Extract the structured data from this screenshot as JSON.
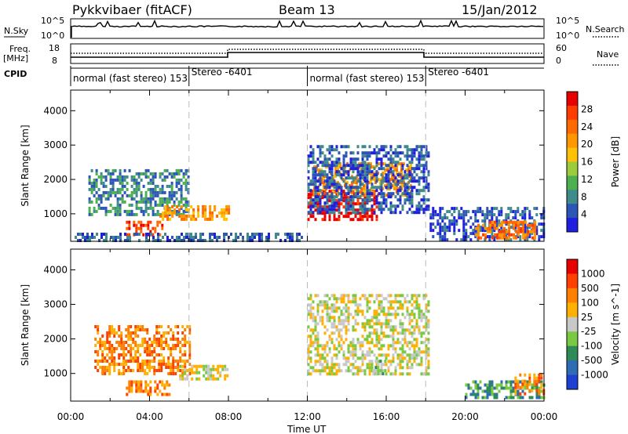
{
  "header": {
    "site": "Pykkvibaer (fitACF)",
    "beam": "Beam 13",
    "date": "15/Jan/2012"
  },
  "top_panels": {
    "nsky_label": "N.Sky",
    "nsky_ticks": [
      "10^5",
      "10^0"
    ],
    "nsearch_ticks": [
      "10^5",
      "10^0"
    ],
    "nsearch_label": "N.Search",
    "freq_label_1": "Freq.",
    "freq_label_2": "[MHz]",
    "freq_ticks": [
      "18",
      "8"
    ],
    "nave_ticks": [
      "60",
      "0"
    ],
    "nave_label": "Nave",
    "cpid_label": "CPID",
    "cpid_segments": [
      {
        "text": "normal (fast stereo) 153",
        "start_h": 0
      },
      {
        "text": "Stereo -6401",
        "start_h": 6
      },
      {
        "text": "normal (fast stereo) 153",
        "start_h": 12
      },
      {
        "text": "Stereo -6401",
        "start_h": 18
      }
    ]
  },
  "chart_data": [
    {
      "type": "heatmap",
      "title": "",
      "xlabel": "Time UT",
      "ylabel": "Slant Range [km]",
      "xlim_hours": [
        0,
        24
      ],
      "ylim_km": [
        200,
        4600
      ],
      "x_tick_labels": [
        "00:00",
        "04:00",
        "08:00",
        "12:00",
        "16:00",
        "20:00",
        "00:00"
      ],
      "y_tick_labels": [
        "1000",
        "2000",
        "3000",
        "4000"
      ],
      "colorbar_label": "Power [dB]",
      "colorbar_ticks": [
        "4",
        "8",
        "12",
        "16",
        "20",
        "24",
        "28"
      ],
      "colorbar_colors": [
        "#1f1fe0",
        "#2d55b5",
        "#3f8a8a",
        "#4caf50",
        "#9ccc3c",
        "#ffc107",
        "#ff9800",
        "#ff6a00",
        "#ff3b00",
        "#e60000"
      ],
      "regions": [
        {
          "t0": 0.9,
          "t1": 6.0,
          "r0": 1000,
          "r1": 2300,
          "level": 2
        },
        {
          "t0": 2.8,
          "t1": 4.6,
          "r0": 350,
          "r1": 800,
          "level": 8
        },
        {
          "t0": 4.5,
          "t1": 8.0,
          "r0": 800,
          "r1": 1250,
          "level": 6
        },
        {
          "t0": 0.2,
          "t1": 11.9,
          "r0": 200,
          "r1": 450,
          "level": 1
        },
        {
          "t0": 12.0,
          "t1": 15.5,
          "r0": 800,
          "r1": 1700,
          "level": 9
        },
        {
          "t0": 12.3,
          "t1": 17.2,
          "r0": 1500,
          "r1": 2500,
          "level": 6
        },
        {
          "t0": 12.0,
          "t1": 18.2,
          "r0": 1000,
          "r1": 3000,
          "level": 1
        },
        {
          "t0": 18.2,
          "t1": 24.0,
          "r0": 200,
          "r1": 1200,
          "level": 1
        },
        {
          "t0": 20.5,
          "t1": 23.5,
          "r0": 300,
          "r1": 800,
          "level": 7
        }
      ]
    },
    {
      "type": "heatmap",
      "title": "",
      "xlabel": "Time UT",
      "ylabel": "Slant Range [km]",
      "xlim_hours": [
        0,
        24
      ],
      "ylim_km": [
        200,
        4600
      ],
      "x_tick_labels": [
        "00:00",
        "04:00",
        "08:00",
        "12:00",
        "16:00",
        "20:00",
        "00:00"
      ],
      "y_tick_labels": [
        "1000",
        "2000",
        "3000",
        "4000"
      ],
      "colorbar_label": "Velocity [m s^-1]",
      "colorbar_ticks": [
        "1000",
        "500",
        "100",
        "25",
        "-25",
        "-100",
        "-500",
        "-1000"
      ],
      "colorbar_colors": [
        "#1f3fd0",
        "#2e6db5",
        "#2e8b57",
        "#7ac943",
        "#c8c8c8",
        "#ffb000",
        "#ff8000",
        "#ff4000",
        "#e60000"
      ],
      "regions": [
        {
          "t0": 1.2,
          "t1": 6.0,
          "r0": 1000,
          "r1": 2400,
          "level": 6
        },
        {
          "t0": 2.8,
          "t1": 5.0,
          "r0": 350,
          "r1": 800,
          "level": 6
        },
        {
          "t0": 5.5,
          "t1": 8.0,
          "r0": 800,
          "r1": 1250,
          "level": 4
        },
        {
          "t0": 12.0,
          "t1": 18.2,
          "r0": 1000,
          "r1": 3300,
          "level": 4
        },
        {
          "t0": 15.3,
          "t1": 16.0,
          "r0": 1000,
          "r1": 1400,
          "level": 3
        },
        {
          "t0": 20.0,
          "t1": 24.0,
          "r0": 300,
          "r1": 800,
          "level": 2
        },
        {
          "t0": 22.5,
          "t1": 24.0,
          "r0": 400,
          "r1": 1000,
          "level": 6
        }
      ]
    }
  ]
}
